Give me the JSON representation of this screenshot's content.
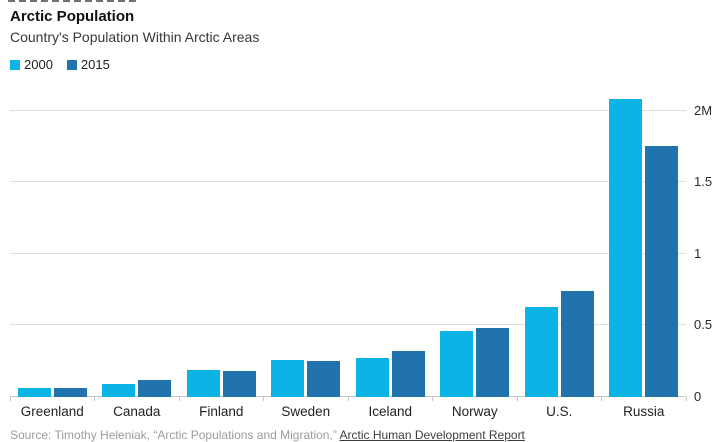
{
  "header": {
    "title": "Arctic Population",
    "subtitle": "Country's Population Within Arctic Areas"
  },
  "legend": [
    {
      "label": "2000",
      "color": "#0cb3e5"
    },
    {
      "label": "2015",
      "color": "#2173ad"
    }
  ],
  "colors": {
    "series_2000": "#0cb3e5",
    "series_2015": "#2173ad",
    "gridline": "#dcdcdc",
    "baseline": "#c6c6c6"
  },
  "chart_data": {
    "type": "bar",
    "title": "Arctic Population",
    "subtitle": "Country's Population Within Arctic Areas",
    "unit": "millions of people",
    "categories": [
      "Greenland",
      "Canada",
      "Finland",
      "Sweden",
      "Iceland",
      "Norway",
      "U.S.",
      "Russia"
    ],
    "series": [
      {
        "name": "2000",
        "color": "#0cb3e5",
        "values": [
          0.06,
          0.09,
          0.19,
          0.26,
          0.27,
          0.46,
          0.63,
          2.08
        ]
      },
      {
        "name": "2015",
        "color": "#2173ad",
        "values": [
          0.06,
          0.12,
          0.18,
          0.25,
          0.32,
          0.48,
          0.74,
          1.75
        ]
      }
    ],
    "ylim": [
      0,
      2.15
    ],
    "yticks": [
      {
        "value": 0,
        "label": "0"
      },
      {
        "value": 0.5,
        "label": "0.5"
      },
      {
        "value": 1,
        "label": "1"
      },
      {
        "value": 1.5,
        "label": "1.5"
      },
      {
        "value": 2,
        "label": "2M"
      }
    ],
    "grid": true,
    "axis_side": "right",
    "legend_position": "top-left"
  },
  "source": {
    "prefix": "Source: Timothy Heleniak, “Arctic Populations and Migration,” ",
    "link": "Arctic Human Development Report"
  }
}
